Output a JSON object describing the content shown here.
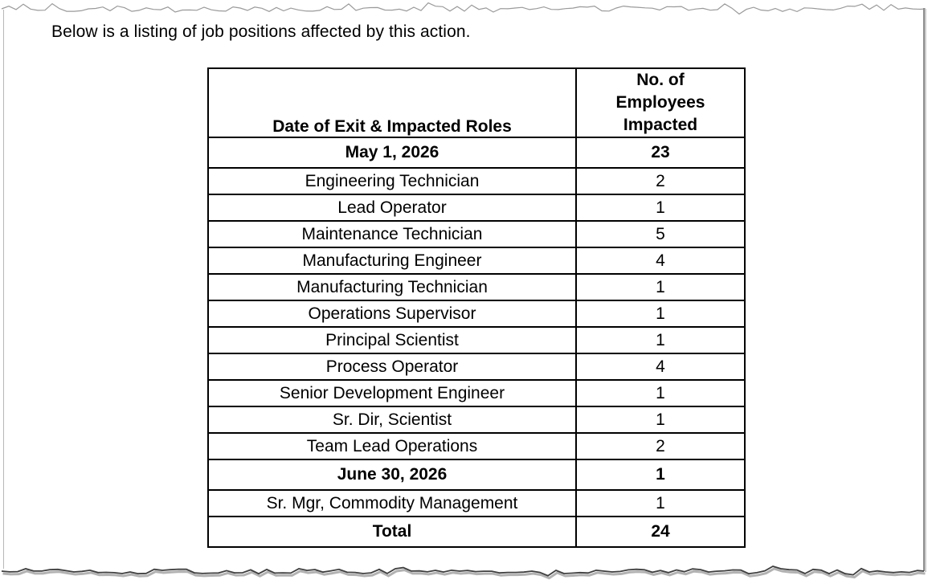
{
  "page": {
    "intro_text": "Below is a listing of job positions affected by this action."
  },
  "table": {
    "role_header": "Date of Exit & Impacted Roles",
    "count_header_lines": [
      "No. of",
      "Employees",
      "Impacted"
    ],
    "rows": [
      {
        "role": "May 1, 2026",
        "count": "23",
        "bold": true
      },
      {
        "role": "Engineering Technician",
        "count": "2",
        "bold": false
      },
      {
        "role": "Lead Operator",
        "count": "1",
        "bold": false
      },
      {
        "role": "Maintenance Technician",
        "count": "5",
        "bold": false
      },
      {
        "role": "Manufacturing Engineer",
        "count": "4",
        "bold": false
      },
      {
        "role": "Manufacturing Technician",
        "count": "1",
        "bold": false
      },
      {
        "role": "Operations Supervisor",
        "count": "1",
        "bold": false
      },
      {
        "role": "Principal Scientist",
        "count": "1",
        "bold": false
      },
      {
        "role": "Process Operator",
        "count": "4",
        "bold": false
      },
      {
        "role": "Senior Development Engineer",
        "count": "1",
        "bold": false
      },
      {
        "role": "Sr. Dir, Scientist",
        "count": "1",
        "bold": false
      },
      {
        "role": "Team Lead Operations",
        "count": "2",
        "bold": false
      },
      {
        "role": "June 30, 2026",
        "count": "1",
        "bold": true
      },
      {
        "role": "Sr. Mgr, Commodity Management",
        "count": "1",
        "bold": false
      },
      {
        "role": "Total",
        "count": "24",
        "bold": true
      }
    ]
  },
  "colors": {
    "text": "#000000",
    "table_border": "#000000",
    "page_background": "#ffffff",
    "torn_edge_top": "#9a9a9a",
    "torn_edge_bottom": "#3f3f3f",
    "torn_edge_shadow": "#b2b2b2",
    "side_edge": "#b8b8b8"
  }
}
